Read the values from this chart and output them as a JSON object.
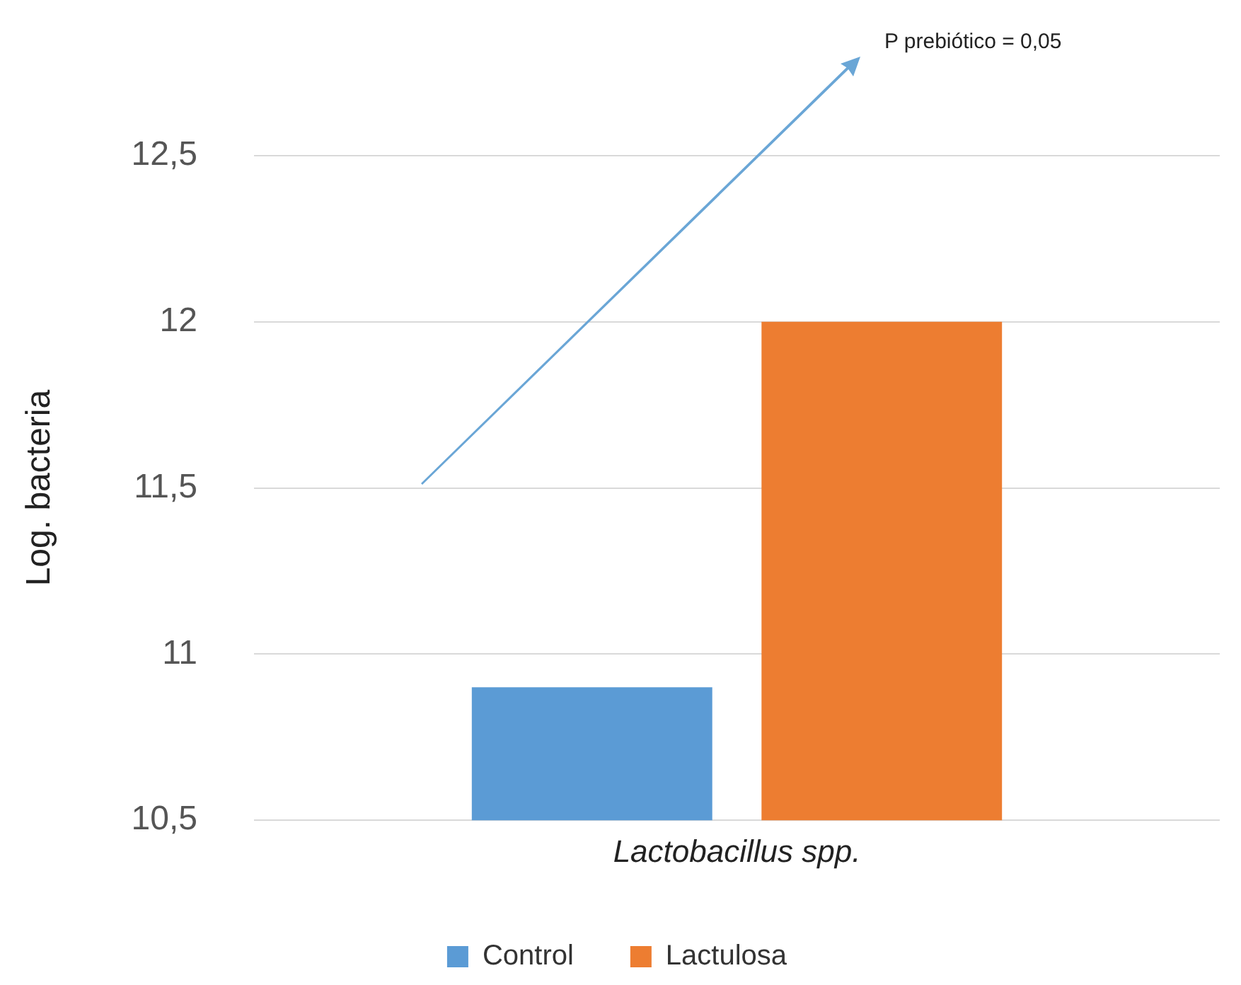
{
  "chart_data": {
    "type": "bar",
    "ylabel": "Log. bacteria",
    "categories": [
      "Lactobacillus spp."
    ],
    "series": [
      {
        "name": "Control",
        "color": "#5b9bd5",
        "values": [
          10.9
        ]
      },
      {
        "name": "Lactulosa",
        "color": "#ed7d31",
        "values": [
          12.0
        ]
      }
    ],
    "ylim": [
      10.5,
      12.5
    ],
    "yticks": [
      {
        "value": 10.5,
        "label": "10,5"
      },
      11,
      {
        "value": 11.5,
        "label": "11,5"
      },
      12,
      {
        "value": 12.5,
        "label": "12,5"
      }
    ],
    "grid": "y",
    "legend": "bottom",
    "annotations": [
      "P prebiótico = 0,05"
    ]
  }
}
